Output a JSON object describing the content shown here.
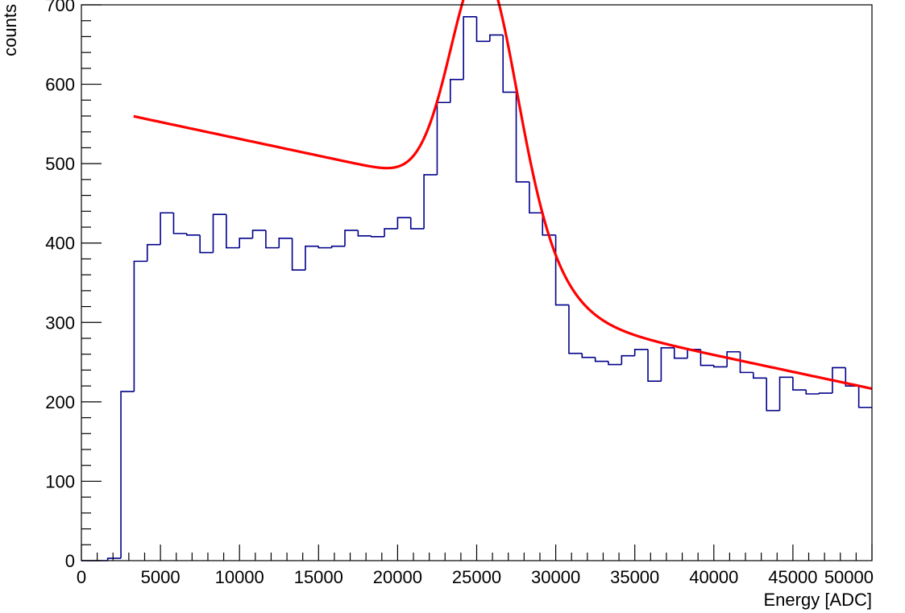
{
  "chart_data": {
    "type": "histogram",
    "xlabel": "Energy [ADC]",
    "ylabel": "counts",
    "xlim": [
      0,
      50000
    ],
    "ylim": [
      0,
      700
    ],
    "x_ticks": [
      0,
      5000,
      10000,
      15000,
      20000,
      25000,
      30000,
      35000,
      40000,
      45000,
      50000
    ],
    "y_ticks": [
      0,
      100,
      200,
      300,
      400,
      500,
      600,
      700
    ],
    "grid": false,
    "histogram": {
      "color": "#00008b",
      "bin_edges": [
        0,
        833.3,
        1666.7,
        2500,
        3333.3,
        4166.7,
        5000,
        5833.3,
        6666.7,
        7500,
        8333.3,
        9166.7,
        10000,
        10833.3,
        11666.7,
        12500,
        13333.3,
        14166.7,
        15000,
        15833.3,
        16666.7,
        17500,
        18333.3,
        19166.7,
        20000,
        20833.3,
        21666.7,
        22500,
        23333.3,
        24166.7,
        25000,
        25833.3,
        26666.7,
        27500,
        28333.3,
        29166.7,
        30000,
        30833.3,
        31666.7,
        32500,
        33333.3,
        34166.7,
        35000,
        35833.3,
        36666.7,
        37500,
        38333.3,
        39166.7,
        40000,
        40833.3,
        41666.7,
        42500,
        43333.3,
        44166.7,
        45000,
        45833.3,
        46666.7,
        47500,
        48333.3,
        49166.7,
        50000
      ],
      "counts": [
        0,
        0,
        3,
        213,
        377,
        398,
        438,
        412,
        410,
        388,
        436,
        394,
        406,
        416,
        394,
        406,
        366,
        396,
        394,
        396,
        416,
        409,
        408,
        418,
        432,
        418,
        486,
        577,
        606,
        685,
        654,
        662,
        590,
        477,
        438,
        410,
        322,
        261,
        256,
        251,
        247,
        258,
        266,
        226,
        268,
        255,
        266,
        246,
        244,
        263,
        237,
        230,
        189,
        231,
        215,
        210,
        211,
        243,
        220,
        193
      ]
    },
    "fit": {
      "color": "#ff0000",
      "x_range": [
        3300,
        50000
      ],
      "baseline_intercept": 428.6,
      "baseline_slope": -0.00424,
      "peak_amplitude": 290,
      "peak_mean": 25400,
      "peak_sigma": 2000,
      "edge_height": 145,
      "edge_center": 29600,
      "edge_width": 1500
    }
  }
}
